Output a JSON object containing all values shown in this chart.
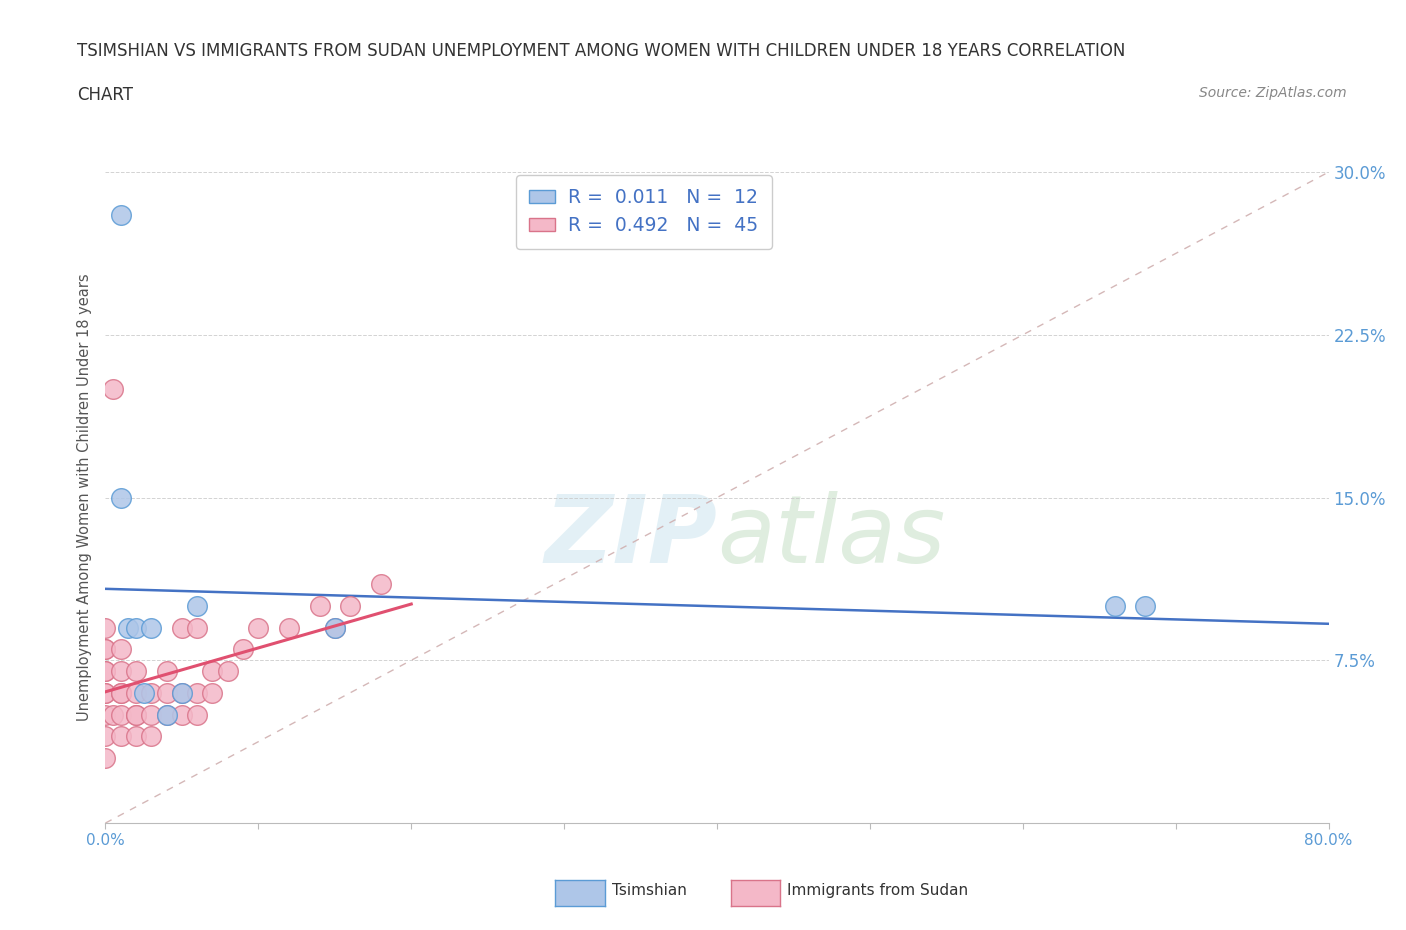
{
  "title_line1": "TSIMSHIAN VS IMMIGRANTS FROM SUDAN UNEMPLOYMENT AMONG WOMEN WITH CHILDREN UNDER 18 YEARS CORRELATION",
  "title_line2": "CHART",
  "source_text": "Source: ZipAtlas.com",
  "ylabel": "Unemployment Among Women with Children Under 18 years",
  "xlim": [
    0,
    80
  ],
  "ylim": [
    0,
    30
  ],
  "xticks": [
    0,
    10,
    20,
    30,
    40,
    50,
    60,
    70,
    80
  ],
  "xtick_labels_show": [
    "0.0%",
    "",
    "",
    "",
    "",
    "",
    "",
    "",
    "80.0%"
  ],
  "yticks": [
    0,
    7.5,
    15.0,
    22.5,
    30.0
  ],
  "ytick_labels_right": [
    "",
    "7.5%",
    "15.0%",
    "22.5%",
    "30.0%"
  ],
  "watermark_zip": "ZIP",
  "watermark_atlas": "atlas",
  "legend_r1": "R = ",
  "legend_v1": "0.011",
  "legend_n1": "  N = ",
  "legend_nv1": "12",
  "legend_r2": "R = ",
  "legend_v2": "0.492",
  "legend_n2": "  N = ",
  "legend_nv2": "45",
  "tsimshian_x": [
    1.0,
    1.0,
    1.5,
    2.0,
    2.5,
    3.0,
    4.0,
    5.0,
    6.0,
    66.0,
    68.0,
    15.0
  ],
  "tsimshian_y": [
    28.0,
    15.0,
    9.0,
    9.0,
    6.0,
    9.0,
    5.0,
    6.0,
    10.0,
    10.0,
    10.0,
    9.0
  ],
  "sudan_x": [
    0.0,
    0.0,
    0.0,
    0.0,
    0.0,
    0.0,
    0.0,
    0.0,
    0.0,
    0.0,
    0.5,
    0.5,
    1.0,
    1.0,
    1.0,
    1.0,
    1.0,
    1.0,
    2.0,
    2.0,
    2.0,
    2.0,
    2.0,
    3.0,
    3.0,
    3.0,
    4.0,
    4.0,
    4.0,
    5.0,
    5.0,
    5.0,
    6.0,
    6.0,
    6.0,
    7.0,
    7.0,
    8.0,
    9.0,
    10.0,
    12.0,
    14.0,
    15.0,
    16.0,
    18.0
  ],
  "sudan_y": [
    3.0,
    4.0,
    5.0,
    6.0,
    6.0,
    7.0,
    7.0,
    8.0,
    8.0,
    9.0,
    20.0,
    5.0,
    4.0,
    5.0,
    6.0,
    6.0,
    7.0,
    8.0,
    4.0,
    5.0,
    5.0,
    6.0,
    7.0,
    4.0,
    5.0,
    6.0,
    5.0,
    6.0,
    7.0,
    5.0,
    6.0,
    9.0,
    5.0,
    6.0,
    9.0,
    6.0,
    7.0,
    7.0,
    8.0,
    9.0,
    9.0,
    10.0,
    9.0,
    10.0,
    11.0
  ],
  "tsimshian_color": "#aec6e8",
  "tsimshian_edge": "#5b9bd5",
  "sudan_color": "#f4b8c8",
  "sudan_edge": "#d9748a",
  "trendline_tsimshian_color": "#4472c4",
  "trendline_sudan_color": "#e05070",
  "diagonal_color": "#d0b0b0",
  "background_color": "#ffffff",
  "grid_color": "#c8c8c8",
  "title_color": "#333333",
  "axis_label_color": "#555555",
  "tick_label_color": "#5b9bd5",
  "value_color": "#4472c4",
  "legend_label_color": "#333333"
}
